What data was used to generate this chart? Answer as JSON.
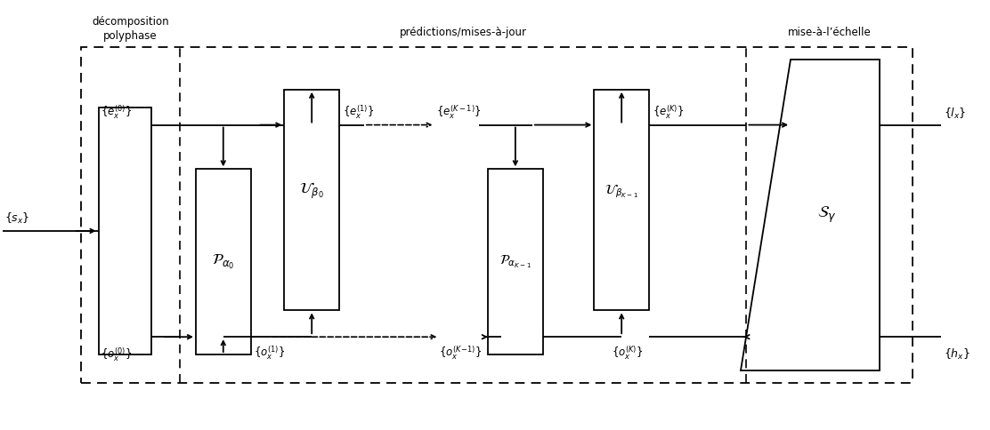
{
  "bg_color": "#ffffff",
  "fig_width": 11.12,
  "fig_height": 4.84,
  "dpi": 100,
  "label_decomp_line1": "décomposition",
  "label_decomp_line2": "polyphase",
  "label_pred": "prédictions/mises-à-jour",
  "label_scale": "mise-à-l’échelle",
  "label_sx": "$\\{s_x\\}$",
  "label_lx": "$\\{l_x\\}$",
  "label_hx": "$\\{h_x\\}$",
  "label_e0": "$\\{e_x^{(0)}\\}$",
  "label_o0": "$\\{o_x^{(0)}\\}$",
  "label_e1": "$\\{e_x^{(1)}\\}$",
  "label_o1": "$\\{o_x^{(1)}\\}$",
  "label_eK1": "$\\{e_x^{(K-1)}\\}$",
  "label_oK1": "$\\{o_x^{(K\\!-\\!1)}\\}$",
  "label_eK": "$\\{e_x^{(K)}\\}$",
  "label_oK": "$\\{o_x^{(K)}\\}$",
  "label_P0": "$\\mathcal{P}_{\\alpha_0}$",
  "label_U0": "$\\mathcal{U}_{\\beta_0}$",
  "label_PK1": "$\\mathcal{P}_{\\alpha_{K-1}}$",
  "label_UK1": "$\\mathcal{U}_{\\beta_{K-1}}$",
  "label_Sg": "$\\mathcal{S}_{\\gamma}$"
}
